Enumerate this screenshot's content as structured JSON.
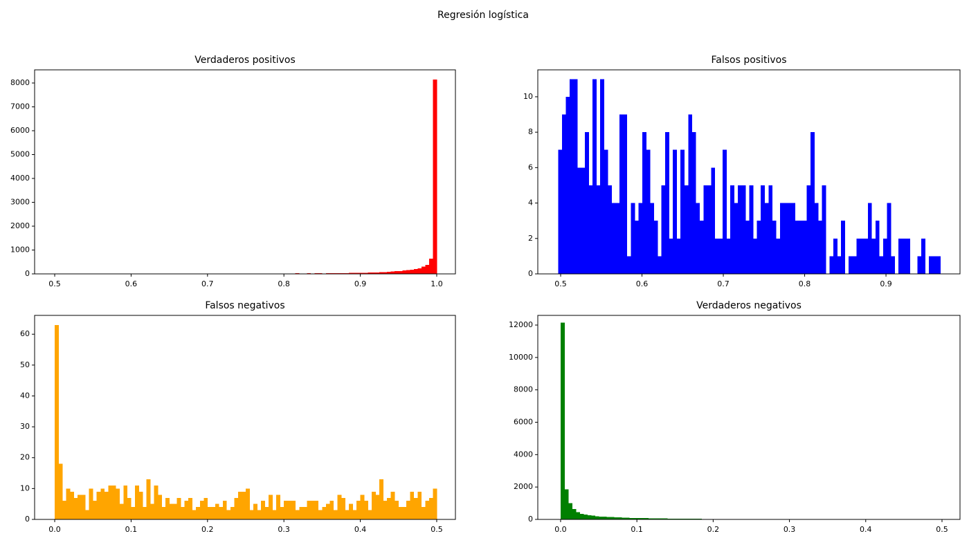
{
  "title": "Regresión logística",
  "chart_data": [
    {
      "type": "histogram",
      "title": "Verdaderos positivos",
      "color": "#ff0000",
      "bins": [
        0.5,
        0.505,
        0.51,
        0.515,
        0.52,
        0.525,
        0.53,
        0.535,
        0.54,
        0.545,
        0.55,
        0.555,
        0.56,
        0.565,
        0.57,
        0.575,
        0.58,
        0.585,
        0.59,
        0.595,
        0.6,
        0.605,
        0.61,
        0.615,
        0.62,
        0.625,
        0.63,
        0.635,
        0.64,
        0.645,
        0.65,
        0.655,
        0.66,
        0.665,
        0.67,
        0.675,
        0.68,
        0.685,
        0.69,
        0.695,
        0.7,
        0.705,
        0.71,
        0.715,
        0.72,
        0.725,
        0.73,
        0.735,
        0.74,
        0.745,
        0.75,
        0.755,
        0.76,
        0.765,
        0.77,
        0.775,
        0.78,
        0.785,
        0.79,
        0.795,
        0.8,
        0.805,
        0.81,
        0.815,
        0.82,
        0.825,
        0.83,
        0.835,
        0.84,
        0.845,
        0.85,
        0.855,
        0.86,
        0.865,
        0.87,
        0.875,
        0.88,
        0.885,
        0.89,
        0.895,
        0.9,
        0.905,
        0.91,
        0.915,
        0.92,
        0.925,
        0.93,
        0.935,
        0.94,
        0.945,
        0.95,
        0.955,
        0.96,
        0.965,
        0.97,
        0.975,
        0.98,
        0.985,
        0.99,
        0.995,
        1.0
      ],
      "values": [
        3,
        5,
        8,
        4,
        6,
        9,
        5,
        7,
        10,
        6,
        4,
        8,
        6,
        9,
        7,
        5,
        8,
        10,
        6,
        9,
        7,
        6,
        9,
        8,
        10,
        7,
        9,
        6,
        11,
        8,
        9,
        10,
        8,
        11,
        9,
        12,
        10,
        9,
        13,
        11,
        10,
        12,
        11,
        13,
        12,
        14,
        11,
        13,
        15,
        12,
        14,
        13,
        15,
        17,
        14,
        16,
        18,
        15,
        17,
        19,
        18,
        20,
        17,
        22,
        19,
        21,
        24,
        20,
        23,
        26,
        20,
        25,
        22,
        30,
        28,
        35,
        30,
        40,
        38,
        45,
        50,
        48,
        55,
        60,
        58,
        70,
        75,
        85,
        95,
        110,
        120,
        140,
        160,
        180,
        200,
        230,
        300,
        380,
        640,
        8150
      ],
      "xlim": [
        0.4737,
        1.0245
      ],
      "xticks": [
        0.5,
        0.6,
        0.7,
        0.8,
        0.9,
        {
          "value": 1,
          "label": "1.0"
        }
      ],
      "ylim": [
        0,
        8551
      ],
      "yticks": [
        0,
        1000,
        2000,
        3000,
        4000,
        5000,
        6000,
        7000,
        8000
      ]
    },
    {
      "type": "histogram",
      "title": "Falsos positivos",
      "color": "#0000ff",
      "bins": [
        0.497,
        0.5017,
        0.5064,
        0.5111,
        0.5158,
        0.5205,
        0.5252,
        0.5299,
        0.5346,
        0.5393,
        0.544,
        0.5487,
        0.5534,
        0.5581,
        0.5628,
        0.5675,
        0.5722,
        0.5769,
        0.5816,
        0.5863,
        0.591,
        0.5957,
        0.6004,
        0.6051,
        0.6098,
        0.6145,
        0.6192,
        0.6239,
        0.6286,
        0.6333,
        0.638,
        0.6427,
        0.6474,
        0.6521,
        0.6568,
        0.6615,
        0.6662,
        0.6709,
        0.6756,
        0.6803,
        0.685,
        0.6897,
        0.6944,
        0.6991,
        0.7038,
        0.7085,
        0.7132,
        0.7179,
        0.7226,
        0.7273,
        0.732,
        0.7367,
        0.7414,
        0.7461,
        0.7508,
        0.7555,
        0.7602,
        0.7649,
        0.7696,
        0.7743,
        0.779,
        0.7837,
        0.7884,
        0.7931,
        0.7978,
        0.8025,
        0.8072,
        0.8119,
        0.8166,
        0.8213,
        0.826,
        0.8307,
        0.8354,
        0.8401,
        0.8448,
        0.8495,
        0.8542,
        0.8589,
        0.8636,
        0.8683,
        0.873,
        0.8777,
        0.8824,
        0.8871,
        0.8918,
        0.8965,
        0.9012,
        0.9059,
        0.9106,
        0.9153,
        0.92,
        0.9247,
        0.9294,
        0.9341,
        0.9388,
        0.9435,
        0.9482,
        0.9529,
        0.9576,
        0.9623,
        0.967
      ],
      "values": [
        7,
        9,
        10,
        11,
        11,
        6,
        6,
        8,
        5,
        11,
        5,
        11,
        7,
        5,
        4,
        4,
        9,
        9,
        1,
        4,
        3,
        4,
        8,
        7,
        4,
        3,
        1,
        5,
        8,
        2,
        7,
        2,
        7,
        5,
        9,
        8,
        4,
        3,
        5,
        5,
        6,
        2,
        2,
        7,
        2,
        5,
        4,
        5,
        5,
        3,
        5,
        2,
        3,
        5,
        4,
        5,
        3,
        2,
        4,
        4,
        4,
        4,
        3,
        3,
        3,
        5,
        8,
        4,
        3,
        5,
        0,
        1,
        2,
        1,
        3,
        0,
        1,
        1,
        2,
        2,
        2,
        4,
        2,
        3,
        1,
        2,
        4,
        1,
        0,
        2,
        2,
        2,
        0,
        0,
        1,
        2,
        0,
        1,
        1,
        1
      ],
      "xlim": [
        0.4719,
        0.991
      ],
      "xticks": [
        0.5,
        0.6,
        0.7,
        0.8,
        0.9
      ],
      "ylim": [
        0,
        11.52
      ],
      "yticks": [
        0,
        2,
        4,
        6,
        8,
        10
      ]
    },
    {
      "type": "histogram",
      "title": "Falsos negativos",
      "color": "#ffa500",
      "bins": [
        0,
        0.005,
        0.01,
        0.015,
        0.02,
        0.025,
        0.03,
        0.035,
        0.04,
        0.045,
        0.05,
        0.055,
        0.06,
        0.065,
        0.07,
        0.075,
        0.08,
        0.085,
        0.09,
        0.095,
        0.1,
        0.105,
        0.11,
        0.115,
        0.12,
        0.125,
        0.13,
        0.135,
        0.14,
        0.145,
        0.15,
        0.155,
        0.16,
        0.165,
        0.17,
        0.175,
        0.18,
        0.185,
        0.19,
        0.195,
        0.2,
        0.205,
        0.21,
        0.215,
        0.22,
        0.225,
        0.23,
        0.235,
        0.24,
        0.245,
        0.25,
        0.255,
        0.26,
        0.265,
        0.27,
        0.275,
        0.28,
        0.285,
        0.29,
        0.295,
        0.3,
        0.305,
        0.31,
        0.315,
        0.32,
        0.325,
        0.33,
        0.335,
        0.34,
        0.345,
        0.35,
        0.355,
        0.36,
        0.365,
        0.37,
        0.375,
        0.38,
        0.385,
        0.39,
        0.395,
        0.4,
        0.405,
        0.41,
        0.415,
        0.42,
        0.425,
        0.43,
        0.435,
        0.44,
        0.445,
        0.45,
        0.455,
        0.46,
        0.465,
        0.47,
        0.475,
        0.48,
        0.485,
        0.49,
        0.495,
        0.5
      ],
      "values": [
        63,
        18,
        6,
        10,
        9,
        7,
        8,
        8,
        3,
        10,
        6,
        9,
        10,
        9,
        11,
        11,
        10,
        5,
        11,
        7,
        4,
        11,
        9,
        4,
        13,
        5,
        11,
        8,
        4,
        7,
        5,
        5,
        7,
        4,
        6,
        7,
        3,
        4,
        6,
        7,
        4,
        4,
        5,
        4,
        6,
        3,
        4,
        7,
        9,
        9,
        10,
        3,
        5,
        3,
        6,
        4,
        8,
        3,
        8,
        4,
        6,
        6,
        6,
        3,
        4,
        4,
        6,
        6,
        6,
        3,
        4,
        5,
        6,
        3,
        8,
        7,
        3,
        5,
        3,
        6,
        8,
        6,
        3,
        9,
        8,
        13,
        6,
        7,
        9,
        6,
        4,
        4,
        6,
        9,
        7,
        9,
        4,
        6,
        7,
        10
      ],
      "xlim": [
        -0.0263,
        0.5245
      ],
      "xticks": [
        {
          "value": 0,
          "label": "0.0"
        },
        0.1,
        0.2,
        0.3,
        0.4,
        0.5
      ],
      "ylim": [
        0,
        66.1
      ],
      "yticks": [
        0,
        10,
        20,
        30,
        40,
        50,
        60
      ]
    },
    {
      "type": "histogram",
      "title": "Verdaderos negativos",
      "color": "#008000",
      "bins": [
        0,
        0.005,
        0.01,
        0.015,
        0.02,
        0.025,
        0.03,
        0.035,
        0.04,
        0.045,
        0.05,
        0.055,
        0.06,
        0.065,
        0.07,
        0.075,
        0.08,
        0.085,
        0.09,
        0.095,
        0.1,
        0.105,
        0.11,
        0.115,
        0.12,
        0.125,
        0.13,
        0.135,
        0.14,
        0.145,
        0.15,
        0.155,
        0.16,
        0.165,
        0.17,
        0.175,
        0.18,
        0.185,
        0.19,
        0.195,
        0.2,
        0.205,
        0.21,
        0.215,
        0.22,
        0.225,
        0.23,
        0.235,
        0.24,
        0.245,
        0.25,
        0.255,
        0.26,
        0.265,
        0.27,
        0.275,
        0.28,
        0.285,
        0.29,
        0.295,
        0.3,
        0.305,
        0.31,
        0.315,
        0.32,
        0.325,
        0.33,
        0.335,
        0.34,
        0.345,
        0.35,
        0.355,
        0.36,
        0.365,
        0.37,
        0.375,
        0.38,
        0.385,
        0.39,
        0.395,
        0.4,
        0.405,
        0.41,
        0.415,
        0.42,
        0.425,
        0.43,
        0.435,
        0.44,
        0.445,
        0.45,
        0.455,
        0.46,
        0.465,
        0.47,
        0.475,
        0.48,
        0.485,
        0.49,
        0.495,
        0.5
      ],
      "values": [
        12150,
        1850,
        1000,
        650,
        450,
        350,
        300,
        260,
        230,
        200,
        180,
        165,
        150,
        140,
        130,
        120,
        110,
        100,
        95,
        90,
        85,
        80,
        75,
        70,
        65,
        60,
        58,
        55,
        52,
        50,
        48,
        45,
        42,
        40,
        38,
        36,
        34,
        32,
        30,
        28,
        27,
        26,
        25,
        24,
        23,
        22,
        21,
        20,
        19,
        18,
        17,
        16,
        15,
        14,
        13,
        12,
        12,
        11,
        11,
        10,
        10,
        9,
        9,
        8,
        8,
        8,
        7,
        7,
        7,
        6,
        6,
        6,
        6,
        5,
        5,
        5,
        5,
        5,
        4,
        4,
        4,
        4,
        4,
        4,
        3,
        3,
        3,
        3,
        3,
        3,
        3,
        3,
        2,
        2,
        2,
        2,
        2,
        2,
        2,
        3
      ],
      "xlim": [
        -0.0299,
        0.5236
      ],
      "xticks": [
        {
          "value": 0,
          "label": "0.0"
        },
        0.1,
        0.2,
        0.3,
        0.4,
        0.5
      ],
      "ylim": [
        0,
        12598
      ],
      "yticks": [
        0,
        2000,
        4000,
        6000,
        8000,
        10000,
        12000
      ]
    }
  ]
}
